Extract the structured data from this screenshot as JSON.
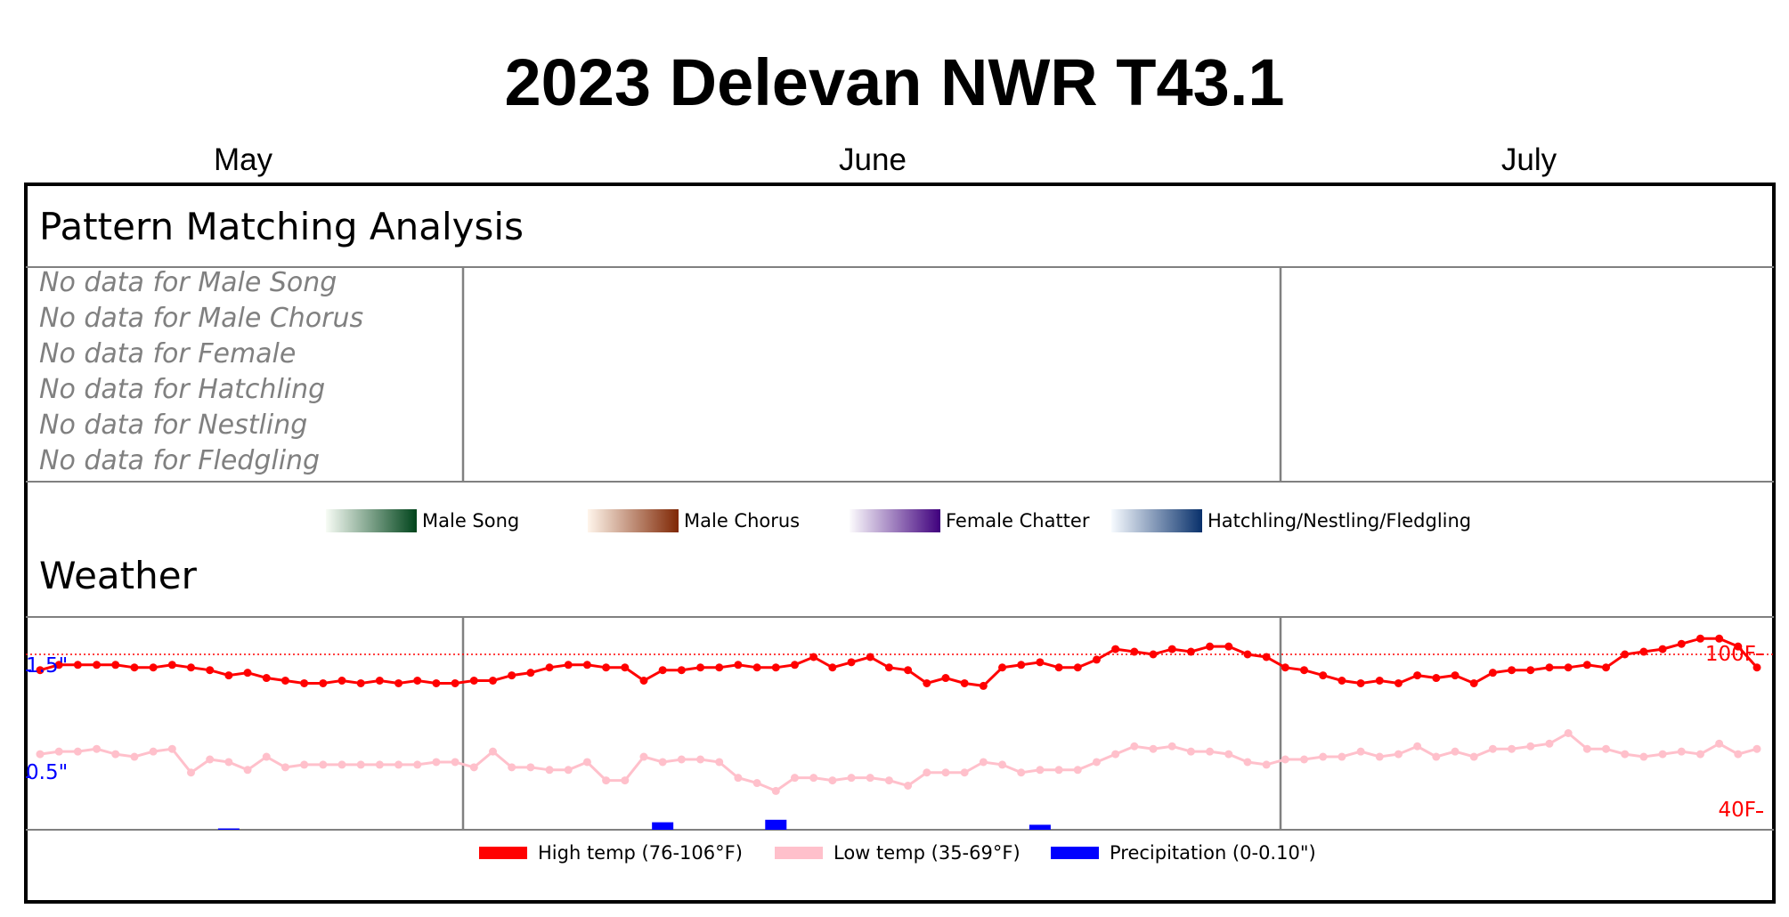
{
  "title": "2023 Delevan NWR T43.1",
  "months": [
    "May",
    "June",
    "July"
  ],
  "pattern": {
    "title": "Pattern Matching Analysis",
    "no_data": [
      "No data for Male Song",
      "No data for Male Chorus",
      "No data for Female",
      "No data for Hatchling",
      "No data for Nestling",
      "No data for Fledgling"
    ]
  },
  "legend": [
    {
      "label": "Male Song",
      "from": "#f7fcf5",
      "to": "#00441b"
    },
    {
      "label": "Male Chorus",
      "from": "#fff5eb",
      "to": "#7f2704"
    },
    {
      "label": "Female Chatter",
      "from": "#fcfbfd",
      "to": "#3f007d"
    },
    {
      "label": "Hatchling/Nestling/Fledgling",
      "from": "#f7fbff",
      "to": "#08306b"
    }
  ],
  "weather": {
    "title": "Weather",
    "legend": {
      "high": "High temp (76-106°F)",
      "low": "Low temp (35-69°F)",
      "precip": "Precipitation (0-0.10\")"
    },
    "colors": {
      "high": "#ff0000",
      "low": "#ffc0cb",
      "precip": "#0000ff"
    }
  },
  "chart_data": {
    "type": "line",
    "x_start": "2023-05-01",
    "x_end": "2023-07-31",
    "x_ticks": [
      "May",
      "June",
      "July"
    ],
    "temp_axis": {
      "labels": [
        "100F",
        "40F"
      ],
      "values": [
        100,
        40
      ],
      "range": [
        35,
        106
      ]
    },
    "precip_axis": {
      "labels": [
        "1.5\"",
        "0.5\""
      ],
      "values": [
        1.5,
        0.5
      ],
      "range": [
        0,
        2
      ]
    },
    "reference_line": 100,
    "series": [
      {
        "name": "High temp",
        "dates": [
          "2023-05-01",
          "2023-05-02",
          "2023-05-03",
          "2023-05-04",
          "2023-05-05",
          "2023-05-06",
          "2023-05-07",
          "2023-05-08",
          "2023-05-09",
          "2023-05-10",
          "2023-05-11",
          "2023-05-12",
          "2023-05-13",
          "2023-05-14",
          "2023-05-15",
          "2023-05-16",
          "2023-05-17",
          "2023-05-18",
          "2023-05-19",
          "2023-05-20",
          "2023-05-21",
          "2023-05-22",
          "2023-05-23",
          "2023-05-24",
          "2023-05-25",
          "2023-05-26",
          "2023-05-27",
          "2023-05-28",
          "2023-05-29",
          "2023-05-30",
          "2023-05-31",
          "2023-06-01",
          "2023-06-02",
          "2023-06-03",
          "2023-06-04",
          "2023-06-05",
          "2023-06-06",
          "2023-06-07",
          "2023-06-08",
          "2023-06-09",
          "2023-06-10",
          "2023-06-11",
          "2023-06-12",
          "2023-06-13",
          "2023-06-14",
          "2023-06-15",
          "2023-06-16",
          "2023-06-17",
          "2023-06-18",
          "2023-06-19",
          "2023-06-20",
          "2023-06-21",
          "2023-06-22",
          "2023-06-23",
          "2023-06-24",
          "2023-06-25",
          "2023-06-26",
          "2023-06-27",
          "2023-06-28",
          "2023-06-29",
          "2023-06-30",
          "2023-07-01",
          "2023-07-02",
          "2023-07-03",
          "2023-07-04",
          "2023-07-05",
          "2023-07-06",
          "2023-07-07",
          "2023-07-08",
          "2023-07-09",
          "2023-07-10",
          "2023-07-11",
          "2023-07-12",
          "2023-07-13",
          "2023-07-14",
          "2023-07-15",
          "2023-07-16",
          "2023-07-17",
          "2023-07-18",
          "2023-07-19",
          "2023-07-20",
          "2023-07-21",
          "2023-07-22",
          "2023-07-23",
          "2023-07-24",
          "2023-07-25",
          "2023-07-26",
          "2023-07-27",
          "2023-07-28",
          "2023-07-29",
          "2023-07-30",
          "2023-07-31"
        ],
        "values": [
          94,
          96,
          96,
          96,
          96,
          95,
          95,
          96,
          95,
          94,
          92,
          93,
          91,
          90,
          89,
          89,
          90,
          89,
          90,
          89,
          90,
          89,
          89,
          90,
          90,
          92,
          93,
          95,
          96,
          96,
          95,
          95,
          90,
          94,
          94,
          95,
          95,
          96,
          95,
          95,
          96,
          99,
          95,
          97,
          99,
          95,
          94,
          89,
          91,
          89,
          88,
          95,
          96,
          97,
          95,
          95,
          98,
          102,
          101,
          100,
          102,
          101,
          103,
          103,
          100,
          99,
          95,
          94,
          92,
          90,
          89,
          90,
          89,
          92,
          91,
          92,
          89,
          93,
          94,
          94,
          95,
          95,
          96,
          95,
          100,
          101,
          102,
          104,
          106,
          106,
          103,
          95
        ]
      },
      {
        "name": "Low temp",
        "dates": [
          "2023-05-01",
          "2023-05-02",
          "2023-05-03",
          "2023-05-04",
          "2023-05-05",
          "2023-05-06",
          "2023-05-07",
          "2023-05-08",
          "2023-05-09",
          "2023-05-10",
          "2023-05-11",
          "2023-05-12",
          "2023-05-13",
          "2023-05-14",
          "2023-05-15",
          "2023-05-16",
          "2023-05-17",
          "2023-05-18",
          "2023-05-19",
          "2023-05-20",
          "2023-05-21",
          "2023-05-22",
          "2023-05-23",
          "2023-05-24",
          "2023-05-25",
          "2023-05-26",
          "2023-05-27",
          "2023-05-28",
          "2023-05-29",
          "2023-05-30",
          "2023-05-31",
          "2023-06-01",
          "2023-06-02",
          "2023-06-03",
          "2023-06-04",
          "2023-06-05",
          "2023-06-06",
          "2023-06-07",
          "2023-06-08",
          "2023-06-09",
          "2023-06-10",
          "2023-06-11",
          "2023-06-12",
          "2023-06-13",
          "2023-06-14",
          "2023-06-15",
          "2023-06-16",
          "2023-06-17",
          "2023-06-18",
          "2023-06-19",
          "2023-06-20",
          "2023-06-21",
          "2023-06-22",
          "2023-06-23",
          "2023-06-24",
          "2023-06-25",
          "2023-06-26",
          "2023-06-27",
          "2023-06-28",
          "2023-06-29",
          "2023-06-30",
          "2023-07-01",
          "2023-07-02",
          "2023-07-03",
          "2023-07-04",
          "2023-07-05",
          "2023-07-06",
          "2023-07-07",
          "2023-07-08",
          "2023-07-09",
          "2023-07-10",
          "2023-07-11",
          "2023-07-12",
          "2023-07-13",
          "2023-07-14",
          "2023-07-15",
          "2023-07-16",
          "2023-07-17",
          "2023-07-18",
          "2023-07-19",
          "2023-07-20",
          "2023-07-21",
          "2023-07-22",
          "2023-07-23",
          "2023-07-24",
          "2023-07-25",
          "2023-07-26",
          "2023-07-27",
          "2023-07-28",
          "2023-07-29",
          "2023-07-30",
          "2023-07-31"
        ],
        "values": [
          62,
          63,
          63,
          64,
          62,
          61,
          63,
          64,
          55,
          60,
          59,
          56,
          61,
          57,
          58,
          58,
          58,
          58,
          58,
          58,
          58,
          59,
          59,
          57,
          63,
          57,
          57,
          56,
          56,
          59,
          52,
          52,
          61,
          59,
          60,
          60,
          59,
          53,
          51,
          48,
          53,
          53,
          52,
          53,
          53,
          52,
          50,
          55,
          55,
          55,
          59,
          58,
          55,
          56,
          56,
          56,
          59,
          62,
          65,
          64,
          65,
          63,
          63,
          62,
          59,
          58,
          60,
          60,
          61,
          61,
          63,
          61,
          62,
          65,
          61,
          63,
          61,
          64,
          64,
          65,
          66,
          70,
          64,
          64,
          62,
          61,
          62,
          63,
          62,
          66,
          62,
          64
        ]
      },
      {
        "name": "Precipitation",
        "dates": [
          "2023-05-11",
          "2023-06-03",
          "2023-06-09",
          "2023-06-23"
        ],
        "values": [
          0.01,
          0.06,
          0.08,
          0.04
        ]
      }
    ]
  }
}
